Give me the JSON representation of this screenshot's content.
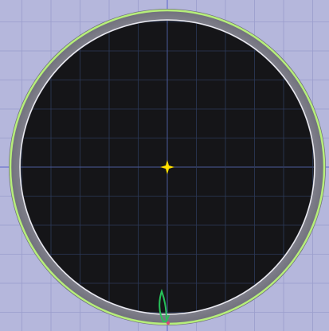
{
  "viewport": {
    "background_color": "#b5b7dc",
    "grid_color": "#9a9dcc",
    "axis_color": "#5b64c8"
  },
  "scope": {
    "outer_ring_color": "#7d7d89",
    "outer_highlight_color": "#b6ee7a",
    "inner_border_color": "#e9e9f0",
    "screen_color": "#151518",
    "screen_grid_color": "#2c3a5a",
    "screen_axis_color": "#4a5a9a"
  },
  "markers": {
    "center": {
      "icon": "crosshair-star-icon",
      "color": "#ffe000"
    },
    "pivot": {
      "icon": "green-leaf-icon",
      "color": "#27c25a"
    },
    "pivot_dot": {
      "color": "#e0407a"
    }
  }
}
